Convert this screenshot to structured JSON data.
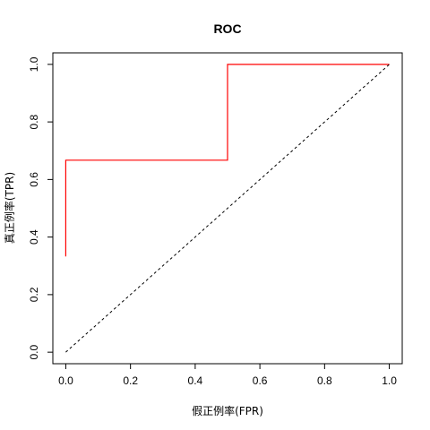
{
  "chart_data": {
    "type": "line",
    "title": "ROC",
    "xlabel": "假正例率(FPR)",
    "ylabel": "真正例率(TPR)",
    "xlim": [
      -0.04,
      1.04
    ],
    "ylim": [
      -0.04,
      1.04
    ],
    "x_ticks": [
      "0.0",
      "0.2",
      "0.4",
      "0.6",
      "0.8",
      "1.0"
    ],
    "y_ticks": [
      "0.0",
      "0.2",
      "0.4",
      "0.6",
      "0.8",
      "1.0"
    ],
    "grid": false,
    "series": [
      {
        "color": "#ff0000",
        "x": [
          0,
          0,
          0.5,
          0.5,
          1.0
        ],
        "y": [
          0.333,
          0.667,
          0.667,
          1.0,
          1.0
        ]
      },
      {
        "color": "#000000",
        "line_style": "dotted",
        "x": [
          0,
          1
        ],
        "y": [
          0,
          1
        ]
      }
    ]
  }
}
